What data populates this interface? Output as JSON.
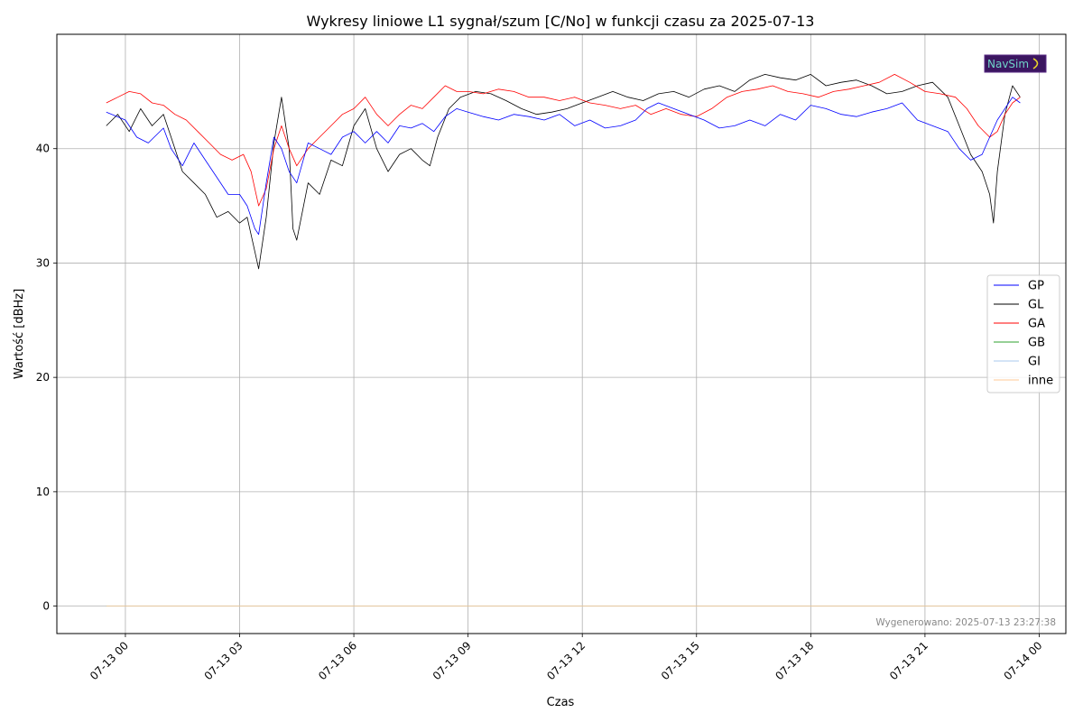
{
  "chart_data": {
    "type": "line",
    "title": "Wykresy liniowe L1 sygnał/szum [C/No] w funkcji czasu za 2025-07-13",
    "xlabel": "Czas",
    "ylabel": "Wartość [dBHz]",
    "x_ticks": [
      "07-13 00",
      "07-13 03",
      "07-13 06",
      "07-13 09",
      "07-13 12",
      "07-13 15",
      "07-13 18",
      "07-13 21",
      "07-14 00"
    ],
    "x_range_hours": [
      -1.8,
      24.7
    ],
    "y_ticks": [
      0,
      10,
      20,
      30,
      40
    ],
    "ylim": [
      -2.4,
      50.0
    ],
    "grid": true,
    "legend_position": "right",
    "series": [
      {
        "name": "GP",
        "color": "#0000ff",
        "points": [
          [
            -0.5,
            43.2
          ],
          [
            0.0,
            42.5
          ],
          [
            0.3,
            41.0
          ],
          [
            0.6,
            40.5
          ],
          [
            1.0,
            41.8
          ],
          [
            1.2,
            40.0
          ],
          [
            1.5,
            38.5
          ],
          [
            1.8,
            40.5
          ],
          [
            2.1,
            39.0
          ],
          [
            2.4,
            37.5
          ],
          [
            2.7,
            36.0
          ],
          [
            3.0,
            36.0
          ],
          [
            3.2,
            35.0
          ],
          [
            3.4,
            33.0
          ],
          [
            3.5,
            32.5
          ],
          [
            3.7,
            37.0
          ],
          [
            3.9,
            41.0
          ],
          [
            4.1,
            40.0
          ],
          [
            4.3,
            38.0
          ],
          [
            4.5,
            37.0
          ],
          [
            4.8,
            40.5
          ],
          [
            5.1,
            40.0
          ],
          [
            5.4,
            39.5
          ],
          [
            5.7,
            41.0
          ],
          [
            6.0,
            41.5
          ],
          [
            6.3,
            40.5
          ],
          [
            6.6,
            41.5
          ],
          [
            6.9,
            40.5
          ],
          [
            7.2,
            42.0
          ],
          [
            7.5,
            41.8
          ],
          [
            7.8,
            42.2
          ],
          [
            8.1,
            41.5
          ],
          [
            8.4,
            42.8
          ],
          [
            8.7,
            43.5
          ],
          [
            9.0,
            43.2
          ],
          [
            9.4,
            42.8
          ],
          [
            9.8,
            42.5
          ],
          [
            10.2,
            43.0
          ],
          [
            10.6,
            42.8
          ],
          [
            11.0,
            42.5
          ],
          [
            11.4,
            43.0
          ],
          [
            11.8,
            42.0
          ],
          [
            12.2,
            42.5
          ],
          [
            12.6,
            41.8
          ],
          [
            13.0,
            42.0
          ],
          [
            13.4,
            42.5
          ],
          [
            13.7,
            43.5
          ],
          [
            14.0,
            44.0
          ],
          [
            14.4,
            43.5
          ],
          [
            14.8,
            43.0
          ],
          [
            15.2,
            42.5
          ],
          [
            15.6,
            41.8
          ],
          [
            16.0,
            42.0
          ],
          [
            16.4,
            42.5
          ],
          [
            16.8,
            42.0
          ],
          [
            17.2,
            43.0
          ],
          [
            17.6,
            42.5
          ],
          [
            18.0,
            43.8
          ],
          [
            18.4,
            43.5
          ],
          [
            18.8,
            43.0
          ],
          [
            19.2,
            42.8
          ],
          [
            19.6,
            43.2
          ],
          [
            20.0,
            43.5
          ],
          [
            20.4,
            44.0
          ],
          [
            20.8,
            42.5
          ],
          [
            21.2,
            42.0
          ],
          [
            21.6,
            41.5
          ],
          [
            21.9,
            40.0
          ],
          [
            22.2,
            39.0
          ],
          [
            22.5,
            39.5
          ],
          [
            22.7,
            41.0
          ],
          [
            22.9,
            42.5
          ],
          [
            23.1,
            43.5
          ],
          [
            23.3,
            44.5
          ],
          [
            23.5,
            44.0
          ]
        ]
      },
      {
        "name": "GL",
        "color": "#000000",
        "points": [
          [
            -0.5,
            42.0
          ],
          [
            -0.2,
            43.0
          ],
          [
            0.1,
            41.5
          ],
          [
            0.4,
            43.5
          ],
          [
            0.7,
            42.0
          ],
          [
            1.0,
            43.0
          ],
          [
            1.2,
            41.0
          ],
          [
            1.5,
            38.0
          ],
          [
            1.8,
            37.0
          ],
          [
            2.1,
            36.0
          ],
          [
            2.4,
            34.0
          ],
          [
            2.7,
            34.5
          ],
          [
            3.0,
            33.5
          ],
          [
            3.2,
            34.0
          ],
          [
            3.4,
            31.0
          ],
          [
            3.5,
            29.5
          ],
          [
            3.7,
            34.0
          ],
          [
            3.9,
            40.5
          ],
          [
            4.1,
            44.5
          ],
          [
            4.3,
            40.0
          ],
          [
            4.4,
            33.0
          ],
          [
            4.5,
            32.0
          ],
          [
            4.8,
            37.0
          ],
          [
            5.1,
            36.0
          ],
          [
            5.4,
            39.0
          ],
          [
            5.7,
            38.5
          ],
          [
            6.0,
            42.0
          ],
          [
            6.3,
            43.5
          ],
          [
            6.6,
            40.0
          ],
          [
            6.9,
            38.0
          ],
          [
            7.2,
            39.5
          ],
          [
            7.5,
            40.0
          ],
          [
            7.8,
            39.0
          ],
          [
            8.0,
            38.5
          ],
          [
            8.2,
            41.0
          ],
          [
            8.5,
            43.5
          ],
          [
            8.8,
            44.5
          ],
          [
            9.2,
            45.0
          ],
          [
            9.6,
            44.8
          ],
          [
            10.0,
            44.2
          ],
          [
            10.4,
            43.5
          ],
          [
            10.8,
            43.0
          ],
          [
            11.2,
            43.2
          ],
          [
            11.6,
            43.5
          ],
          [
            12.0,
            44.0
          ],
          [
            12.4,
            44.5
          ],
          [
            12.8,
            45.0
          ],
          [
            13.2,
            44.5
          ],
          [
            13.6,
            44.2
          ],
          [
            14.0,
            44.8
          ],
          [
            14.4,
            45.0
          ],
          [
            14.8,
            44.5
          ],
          [
            15.2,
            45.2
          ],
          [
            15.6,
            45.5
          ],
          [
            16.0,
            45.0
          ],
          [
            16.4,
            46.0
          ],
          [
            16.8,
            46.5
          ],
          [
            17.2,
            46.2
          ],
          [
            17.6,
            46.0
          ],
          [
            18.0,
            46.5
          ],
          [
            18.4,
            45.5
          ],
          [
            18.8,
            45.8
          ],
          [
            19.2,
            46.0
          ],
          [
            19.6,
            45.5
          ],
          [
            20.0,
            44.8
          ],
          [
            20.4,
            45.0
          ],
          [
            20.8,
            45.5
          ],
          [
            21.2,
            45.8
          ],
          [
            21.6,
            44.5
          ],
          [
            21.9,
            42.0
          ],
          [
            22.2,
            39.5
          ],
          [
            22.5,
            38.0
          ],
          [
            22.7,
            36.0
          ],
          [
            22.8,
            33.5
          ],
          [
            22.9,
            38.0
          ],
          [
            23.1,
            43.0
          ],
          [
            23.3,
            45.5
          ],
          [
            23.5,
            44.5
          ]
        ]
      },
      {
        "name": "GA",
        "color": "#ff0000",
        "points": [
          [
            -0.5,
            44.0
          ],
          [
            -0.2,
            44.5
          ],
          [
            0.1,
            45.0
          ],
          [
            0.4,
            44.8
          ],
          [
            0.7,
            44.0
          ],
          [
            1.0,
            43.8
          ],
          [
            1.3,
            43.0
          ],
          [
            1.6,
            42.5
          ],
          [
            1.9,
            41.5
          ],
          [
            2.2,
            40.5
          ],
          [
            2.5,
            39.5
          ],
          [
            2.8,
            39.0
          ],
          [
            3.1,
            39.5
          ],
          [
            3.3,
            38.0
          ],
          [
            3.5,
            35.0
          ],
          [
            3.7,
            36.5
          ],
          [
            3.9,
            40.0
          ],
          [
            4.1,
            42.0
          ],
          [
            4.3,
            40.0
          ],
          [
            4.5,
            38.5
          ],
          [
            4.8,
            40.0
          ],
          [
            5.1,
            41.0
          ],
          [
            5.4,
            42.0
          ],
          [
            5.7,
            43.0
          ],
          [
            6.0,
            43.5
          ],
          [
            6.3,
            44.5
          ],
          [
            6.6,
            43.0
          ],
          [
            6.9,
            42.0
          ],
          [
            7.2,
            43.0
          ],
          [
            7.5,
            43.8
          ],
          [
            7.8,
            43.5
          ],
          [
            8.1,
            44.5
          ],
          [
            8.4,
            45.5
          ],
          [
            8.7,
            45.0
          ],
          [
            9.0,
            45.0
          ],
          [
            9.4,
            44.8
          ],
          [
            9.8,
            45.2
          ],
          [
            10.2,
            45.0
          ],
          [
            10.6,
            44.5
          ],
          [
            11.0,
            44.5
          ],
          [
            11.4,
            44.2
          ],
          [
            11.8,
            44.5
          ],
          [
            12.2,
            44.0
          ],
          [
            12.6,
            43.8
          ],
          [
            13.0,
            43.5
          ],
          [
            13.4,
            43.8
          ],
          [
            13.8,
            43.0
          ],
          [
            14.2,
            43.5
          ],
          [
            14.6,
            43.0
          ],
          [
            15.0,
            42.8
          ],
          [
            15.4,
            43.5
          ],
          [
            15.8,
            44.5
          ],
          [
            16.2,
            45.0
          ],
          [
            16.6,
            45.2
          ],
          [
            17.0,
            45.5
          ],
          [
            17.4,
            45.0
          ],
          [
            17.8,
            44.8
          ],
          [
            18.2,
            44.5
          ],
          [
            18.6,
            45.0
          ],
          [
            19.0,
            45.2
          ],
          [
            19.4,
            45.5
          ],
          [
            19.8,
            45.8
          ],
          [
            20.2,
            46.5
          ],
          [
            20.6,
            45.8
          ],
          [
            21.0,
            45.0
          ],
          [
            21.4,
            44.8
          ],
          [
            21.8,
            44.5
          ],
          [
            22.1,
            43.5
          ],
          [
            22.4,
            42.0
          ],
          [
            22.7,
            41.0
          ],
          [
            22.9,
            41.5
          ],
          [
            23.1,
            43.0
          ],
          [
            23.3,
            44.0
          ],
          [
            23.5,
            44.5
          ]
        ]
      },
      {
        "name": "GB",
        "color": "#2ca02c",
        "points": [
          [
            -0.5,
            0
          ],
          [
            23.5,
            0
          ]
        ]
      },
      {
        "name": "GI",
        "color": "#a8c8ec",
        "points": [
          [
            -0.5,
            0
          ],
          [
            23.5,
            0
          ]
        ]
      },
      {
        "name": "inne",
        "color": "#ffc896",
        "points": [
          [
            -0.5,
            0
          ],
          [
            23.5,
            0
          ]
        ]
      }
    ]
  },
  "footer": "Wygenerowano: 2025-07-13 23:27:38",
  "logo_text": "NavSim"
}
